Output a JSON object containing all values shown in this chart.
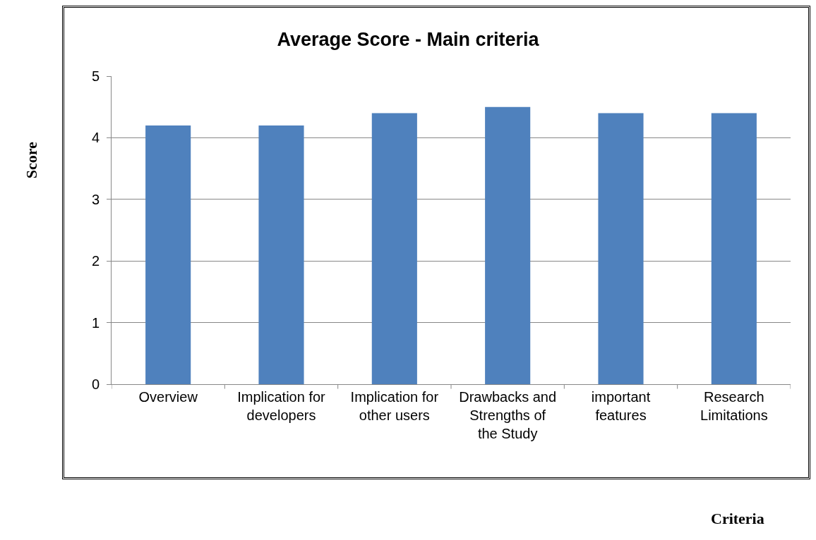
{
  "chart_data": {
    "type": "bar",
    "title": "Average Score - Main criteria",
    "xlabel": "Criteria",
    "ylabel": "Score",
    "categories": [
      "Overview",
      "Implication for developers",
      "Implication for other users",
      "Drawbacks and Strengths of the Study",
      "important features",
      "Research Limitations"
    ],
    "values": [
      4.2,
      4.2,
      4.4,
      4.5,
      4.4,
      4.4
    ],
    "color": "#4f81bd",
    "ylim": [
      0,
      5
    ],
    "yticks": [
      0,
      1,
      2,
      3,
      4,
      5
    ],
    "grid": "y"
  }
}
